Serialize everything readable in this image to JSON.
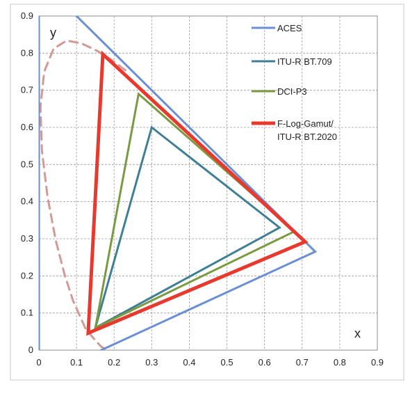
{
  "chart_data": {
    "type": "line",
    "title": "",
    "xlabel": "x",
    "ylabel": "y",
    "xlim": [
      0,
      0.9
    ],
    "ylim": [
      0,
      0.9
    ],
    "x_ticks": [
      "0",
      "0.1",
      "0.2",
      "0.3",
      "0.4",
      "0.5",
      "0.6",
      "0.7",
      "0.8",
      "0.9"
    ],
    "y_ticks": [
      "0",
      "0.1",
      "0.2",
      "0.3",
      "0.4",
      "0.5",
      "0.6",
      "0.7",
      "0.8",
      "0.9"
    ],
    "grid": true,
    "legend_position": "top-right",
    "series": [
      {
        "name": "ACES",
        "color": "#6b8fd3",
        "closed": true,
        "points": [
          [
            0.7347,
            0.2653
          ],
          [
            0.0,
            1.0
          ],
          [
            0.0001,
            -0.077
          ]
        ]
      },
      {
        "name": "ITU-R BT.709",
        "color": "#3f7f95",
        "closed": true,
        "points": [
          [
            0.64,
            0.33
          ],
          [
            0.3,
            0.6
          ],
          [
            0.15,
            0.06
          ]
        ]
      },
      {
        "name": "DCI-P3",
        "color": "#7a9a3f",
        "closed": true,
        "points": [
          [
            0.68,
            0.32
          ],
          [
            0.265,
            0.69
          ],
          [
            0.15,
            0.06
          ]
        ]
      },
      {
        "name": "F-Log-Gamut/\nITU-R BT.2020",
        "legend_lines": [
          "F-Log-Gamut/",
          "ITU-R BT.2020"
        ],
        "color": "#e8392e",
        "closed": true,
        "points": [
          [
            0.708,
            0.292
          ],
          [
            0.17,
            0.797
          ],
          [
            0.131,
            0.046
          ]
        ]
      }
    ],
    "spectral_locus": {
      "color": "#d39a94",
      "style": "dashed",
      "points": [
        [
          0.174,
          0.005
        ],
        [
          0.166,
          0.009
        ],
        [
          0.147,
          0.03
        ],
        [
          0.124,
          0.058
        ],
        [
          0.091,
          0.133
        ],
        [
          0.069,
          0.201
        ],
        [
          0.045,
          0.295
        ],
        [
          0.023,
          0.413
        ],
        [
          0.008,
          0.538
        ],
        [
          0.004,
          0.655
        ],
        [
          0.014,
          0.75
        ],
        [
          0.039,
          0.812
        ],
        [
          0.074,
          0.834
        ],
        [
          0.114,
          0.826
        ],
        [
          0.155,
          0.806
        ],
        [
          0.193,
          0.782
        ],
        [
          0.23,
          0.754
        ]
      ]
    }
  }
}
